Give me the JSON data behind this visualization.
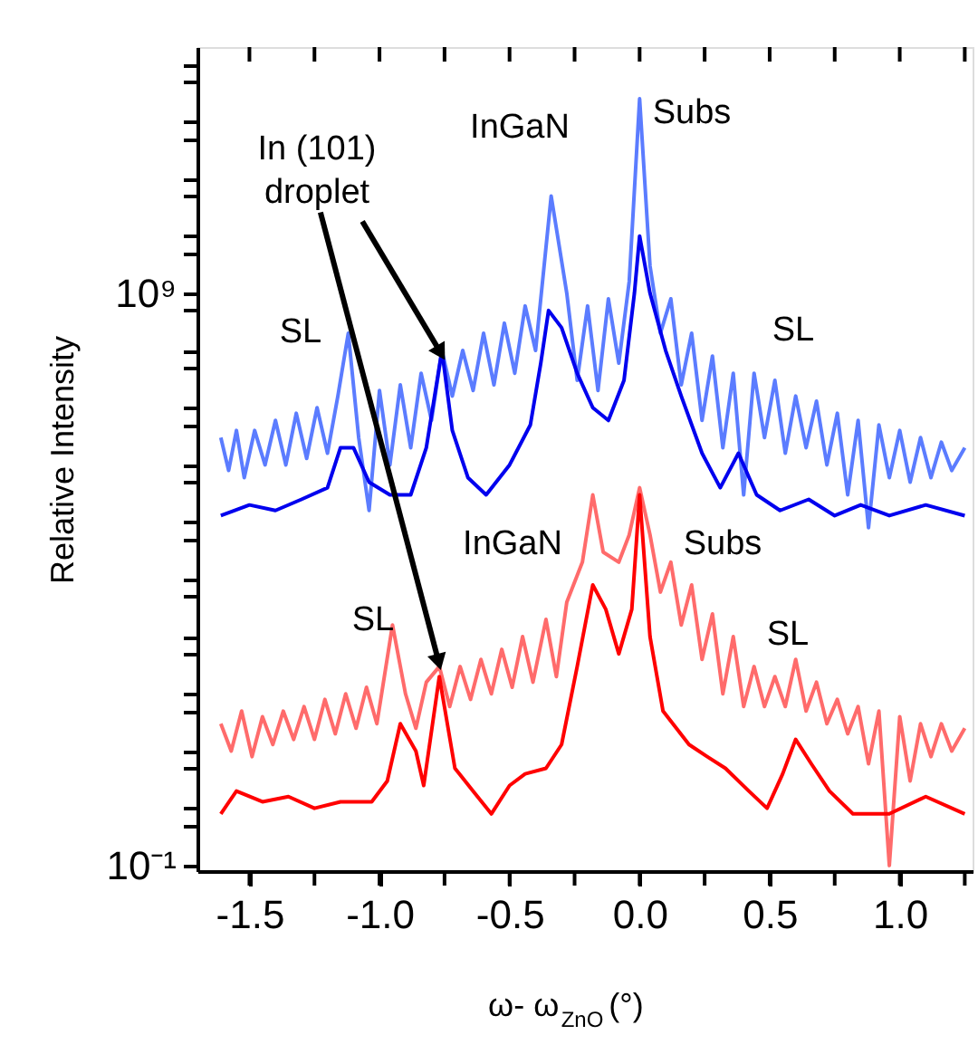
{
  "chart_data": {
    "type": "line",
    "xlabel": "ω- ω$_{ZnO}$ (°)",
    "ylabel": "Relative Intensity",
    "log": "y",
    "grid": false,
    "legend": false,
    "marker": "none",
    "line_style": "solid",
    "xlim": [
      -1.7,
      1.28
    ],
    "xticks": [
      -1.5,
      {
        "value": -1.25,
        "label": null
      },
      {
        "value": -1.0,
        "label": "-1.0"
      },
      {
        "value": -0.75,
        "label": null
      },
      -0.5,
      {
        "value": -0.25,
        "label": null
      },
      {
        "value": 0.0,
        "label": "0.0"
      },
      {
        "value": 0.25,
        "label": null
      },
      0.5,
      {
        "value": 0.75,
        "label": null
      },
      {
        "value": 1.0,
        "label": "1.0"
      },
      {
        "value": 1.25,
        "label": null
      }
    ],
    "ylim": [
      0.08,
      20000000000000.0
    ],
    "yticks": [
      {
        "value": 0.1,
        "label": "10⁻¹"
      },
      {
        "value": 0.5,
        "label": null
      },
      {
        "value": 1,
        "label": null
      },
      {
        "value": 5,
        "label": null
      },
      {
        "value": 10,
        "label": null
      },
      {
        "value": 50,
        "label": null
      },
      {
        "value": 100,
        "label": null
      },
      {
        "value": 500,
        "label": null
      },
      {
        "value": 1000,
        "label": null
      },
      {
        "value": 5000,
        "label": null
      },
      {
        "value": 10000.0,
        "label": null
      },
      {
        "value": 50000.0,
        "label": null
      },
      {
        "value": 100000.0,
        "label": null
      },
      {
        "value": 500000.0,
        "label": null
      },
      {
        "value": 1000000.0,
        "label": null
      },
      {
        "value": 5000000.0,
        "label": null
      },
      {
        "value": 10000000.0,
        "label": null
      },
      {
        "value": 50000000.0,
        "label": null
      },
      {
        "value": 100000000.0,
        "label": null
      },
      {
        "value": 500000000.0,
        "label": null
      },
      {
        "value": 1000000000.0,
        "label": "10⁹"
      },
      {
        "value": 5000000000.0,
        "label": null
      },
      {
        "value": 10000000000.0,
        "label": null
      },
      {
        "value": 50000000000.0,
        "label": null
      },
      {
        "value": 100000000000.0,
        "label": null
      },
      {
        "value": 500000000000.0,
        "label": null
      },
      {
        "value": 1000000000000.0,
        "label": null
      },
      {
        "value": 5000000000000.0,
        "label": null
      },
      {
        "value": 10000000000000.0,
        "label": null
      }
    ],
    "series": [
      {
        "color": "#5b7cff",
        "x": [
          -1.61,
          -1.58,
          -1.55,
          -1.52,
          -1.48,
          -1.44,
          -1.4,
          -1.36,
          -1.32,
          -1.28,
          -1.24,
          -1.2,
          -1.16,
          -1.12,
          -1.08,
          -1.04,
          -1.0,
          -0.96,
          -0.92,
          -0.88,
          -0.84,
          -0.8,
          -0.76,
          -0.72,
          -0.68,
          -0.64,
          -0.6,
          -0.56,
          -0.52,
          -0.48,
          -0.44,
          -0.4,
          -0.34,
          -0.28,
          -0.24,
          -0.2,
          -0.16,
          -0.12,
          -0.08,
          -0.04,
          0.0,
          0.04,
          0.08,
          0.12,
          0.16,
          0.2,
          0.24,
          0.28,
          0.32,
          0.36,
          0.4,
          0.44,
          0.48,
          0.52,
          0.56,
          0.6,
          0.64,
          0.68,
          0.72,
          0.76,
          0.8,
          0.84,
          0.88,
          0.92,
          0.96,
          1.0,
          1.04,
          1.08,
          1.12,
          1.16,
          1.2,
          1.25
        ],
        "values": [
          3000000.0,
          800000.0,
          4000000.0,
          600000.0,
          4000000.0,
          1000000.0,
          6000000.0,
          1000000.0,
          8000000.0,
          1300000.0,
          10000000.0,
          1600000.0,
          16000000.0,
          200000000.0,
          3000000.0,
          160000.0,
          20000000.0,
          1000000.0,
          25000000.0,
          2000000.0,
          40000000.0,
          6000000.0,
          100000000.0,
          16000000.0,
          100000000.0,
          20000000.0,
          200000000.0,
          25000000.0,
          300000000.0,
          40000000.0,
          600000000.0,
          100000000.0,
          50000000000.0,
          1000000000.0,
          30000000.0,
          600000000.0,
          20000000.0,
          800000000.0,
          60000000.0,
          1600000000.0,
          2500000000000.0,
          3000000000.0,
          200000000.0,
          800000000.0,
          25000000.0,
          200000000.0,
          6000000.0,
          80000000.0,
          2000000.0,
          40000000.0,
          300000.0,
          40000000.0,
          3000000.0,
          30000000.0,
          1600000.0,
          16000000.0,
          2000000.0,
          13000000.0,
          1000000.0,
          8000000.0,
          300000.0,
          6000000.0,
          80000.0,
          5000000.0,
          600000.0,
          4000000.0,
          500000.0,
          3000000.0,
          600000.0,
          2500000.0,
          800000.0,
          2000000.0
        ]
      },
      {
        "color": "#0000ee",
        "x": [
          -1.61,
          -1.5,
          -1.4,
          -1.3,
          -1.2,
          -1.15,
          -1.1,
          -1.04,
          -0.96,
          -0.88,
          -0.82,
          -0.76,
          -0.72,
          -0.66,
          -0.59,
          -0.5,
          -0.42,
          -0.38,
          -0.35,
          -0.3,
          -0.24,
          -0.18,
          -0.12,
          -0.06,
          -0.02,
          0.0,
          0.04,
          0.1,
          0.16,
          0.24,
          0.31,
          0.38,
          0.45,
          0.54,
          0.65,
          0.75,
          0.85,
          0.96,
          1.1,
          1.25
        ],
        "values": [
          130000.0,
          200000.0,
          160000.0,
          250000.0,
          400000.0,
          2000000.0,
          2000000.0,
          500000.0,
          300000.0,
          300000.0,
          2000000.0,
          100000000.0,
          4000000.0,
          600000.0,
          300000.0,
          1000000.0,
          5000000.0,
          60000000.0,
          500000000.0,
          250000000.0,
          40000000.0,
          10000000.0,
          6000000.0,
          30000000.0,
          1000000000.0,
          10000000000.0,
          1000000000.0,
          100000000.0,
          16000000.0,
          1600000.0,
          400000.0,
          1600000.0,
          300000.0,
          160000.0,
          250000.0,
          130000.0,
          200000.0,
          130000.0,
          200000.0,
          130000.0
        ]
      },
      {
        "color": "#ff6b6b",
        "x": [
          -1.61,
          -1.57,
          -1.53,
          -1.49,
          -1.45,
          -1.41,
          -1.37,
          -1.33,
          -1.29,
          -1.25,
          -1.21,
          -1.17,
          -1.13,
          -1.09,
          -1.05,
          -1.01,
          -0.95,
          -0.9,
          -0.86,
          -0.82,
          -0.77,
          -0.73,
          -0.69,
          -0.65,
          -0.61,
          -0.57,
          -0.53,
          -0.49,
          -0.45,
          -0.41,
          -0.36,
          -0.32,
          -0.28,
          -0.22,
          -0.18,
          -0.14,
          -0.08,
          -0.04,
          0.0,
          0.04,
          0.08,
          0.12,
          0.16,
          0.2,
          0.24,
          0.28,
          0.32,
          0.36,
          0.4,
          0.44,
          0.48,
          0.52,
          0.56,
          0.6,
          0.64,
          0.68,
          0.72,
          0.76,
          0.8,
          0.84,
          0.88,
          0.92,
          0.96,
          1.0,
          1.04,
          1.08,
          1.12,
          1.16,
          1.2,
          1.25
        ],
        "values": [
          30,
          10,
          50,
          8,
          40,
          13,
          50,
          16,
          60,
          16,
          80,
          20,
          100,
          25,
          130,
          30,
          1600,
          100,
          25,
          160,
          300,
          60,
          300,
          80,
          400,
          100,
          600,
          130,
          1000,
          160,
          2000,
          200,
          4000,
          20000.0,
          300000.0,
          30000.0,
          20000.0,
          60000.0,
          400000.0,
          60000.0,
          6000,
          20000.0,
          1600,
          8000,
          400,
          2500,
          100,
          1000,
          60,
          300,
          60,
          200,
          60,
          400,
          50,
          160,
          30,
          80,
          20,
          60,
          6,
          50,
          0.1,
          40,
          3,
          30,
          8,
          30,
          10,
          25
        ]
      },
      {
        "color": "#ff0000",
        "x": [
          -1.61,
          -1.55,
          -1.45,
          -1.35,
          -1.25,
          -1.15,
          -1.03,
          -0.97,
          -0.92,
          -0.86,
          -0.83,
          -0.77,
          -0.71,
          -0.64,
          -0.57,
          -0.5,
          -0.44,
          -0.36,
          -0.3,
          -0.24,
          -0.18,
          -0.13,
          -0.08,
          -0.03,
          0.0,
          0.04,
          0.09,
          0.19,
          0.26,
          0.33,
          0.42,
          0.49,
          0.55,
          0.6,
          0.66,
          0.73,
          0.82,
          0.96,
          1.1,
          1.25
        ],
        "values": [
          0.8,
          2,
          1.3,
          1.6,
          1,
          1.3,
          1.3,
          3,
          30,
          10,
          2.5,
          200,
          5,
          2,
          0.8,
          2.5,
          4,
          5,
          13,
          300,
          8000,
          3000,
          500,
          3000,
          300000.0,
          1000,
          50,
          13,
          8,
          5,
          2,
          1,
          4,
          16,
          6,
          2,
          0.8,
          0.8,
          1.6,
          0.8
        ]
      }
    ],
    "annotations": [
      {
        "text": "In (101)\ndroplet",
        "x": -0.77,
        "y": 100000000.0
      },
      "InGaN",
      "Subs",
      "SL",
      "SL",
      "InGaN",
      "Subs",
      "SL",
      "SL"
    ]
  }
}
